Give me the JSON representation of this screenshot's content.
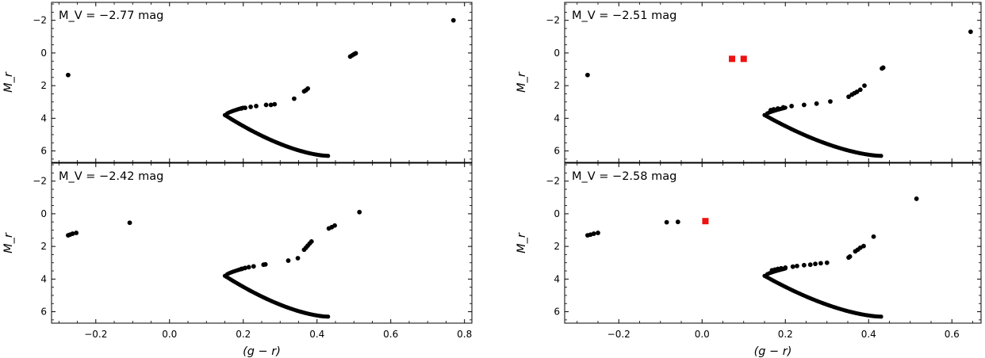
{
  "chart_data": [
    {
      "type": "scatter",
      "panel": "top-left",
      "annotation": "M_V = −2.77 mag",
      "xlabel": "",
      "ylabel": "M_r",
      "xlim": [
        -0.32,
        0.82
      ],
      "ylim": [
        6.7,
        -3.1
      ],
      "y_inverted": true,
      "xticks": [],
      "yticks": [
        -2,
        0,
        2,
        4,
        6
      ],
      "ytick_labels": [
        "−2",
        "0",
        "2",
        "4",
        "6"
      ],
      "black_points": [
        [
          -0.275,
          1.35
        ],
        [
          0.77,
          -2.0
        ],
        [
          0.49,
          0.22
        ],
        [
          0.495,
          0.15
        ],
        [
          0.5,
          0.08
        ],
        [
          0.505,
          0.02
        ],
        [
          0.365,
          2.35
        ],
        [
          0.37,
          2.28
        ],
        [
          0.375,
          2.18
        ],
        [
          0.338,
          2.8
        ],
        [
          0.285,
          3.14
        ],
        [
          0.275,
          3.18
        ],
        [
          0.262,
          3.18
        ],
        [
          0.235,
          3.25
        ],
        [
          0.22,
          3.3
        ],
        [
          0.205,
          3.36
        ],
        [
          0.195,
          3.4
        ]
      ],
      "red_points": []
    },
    {
      "type": "scatter",
      "panel": "top-right",
      "annotation": "M_V = −2.51 mag",
      "xlabel": "",
      "ylabel": "M_r",
      "xlim": [
        -0.33,
        0.67
      ],
      "ylim": [
        6.7,
        -3.1
      ],
      "y_inverted": true,
      "xticks": [],
      "yticks": [
        -2,
        0,
        2,
        4,
        6
      ],
      "ytick_labels": [
        "−2",
        "0",
        "2",
        "4",
        "6"
      ],
      "black_points": [
        [
          -0.275,
          1.35
        ],
        [
          0.645,
          -1.3
        ],
        [
          0.435,
          0.9
        ],
        [
          0.432,
          0.95
        ],
        [
          0.39,
          2.0
        ],
        [
          0.38,
          2.25
        ],
        [
          0.372,
          2.38
        ],
        [
          0.366,
          2.46
        ],
        [
          0.36,
          2.55
        ],
        [
          0.352,
          2.68
        ],
        [
          0.308,
          2.97
        ],
        [
          0.275,
          3.1
        ],
        [
          0.245,
          3.18
        ],
        [
          0.215,
          3.25
        ],
        [
          0.195,
          3.33
        ],
        [
          0.182,
          3.4
        ],
        [
          0.172,
          3.45
        ],
        [
          0.165,
          3.5
        ]
      ],
      "red_points": [
        [
          0.072,
          0.36
        ],
        [
          0.1,
          0.36
        ]
      ]
    },
    {
      "type": "scatter",
      "panel": "bottom-left",
      "annotation": "M_V = −2.42 mag",
      "xlabel": "(g − r)",
      "ylabel": "M_r",
      "xlim": [
        -0.32,
        0.82
      ],
      "ylim": [
        6.7,
        -3.1
      ],
      "y_inverted": true,
      "xticks": [
        -0.2,
        0.0,
        0.2,
        0.4,
        0.6,
        0.8
      ],
      "xtick_labels": [
        "−0.2",
        "0.0",
        "0.2",
        "0.4",
        "0.6",
        "0.8"
      ],
      "yticks": [
        -2,
        0,
        2,
        4,
        6
      ],
      "ytick_labels": [
        "−2",
        "0",
        "2",
        "4",
        "6"
      ],
      "black_points": [
        [
          -0.275,
          1.32
        ],
        [
          -0.27,
          1.28
        ],
        [
          -0.263,
          1.22
        ],
        [
          -0.253,
          1.17
        ],
        [
          -0.108,
          0.55
        ],
        [
          0.515,
          -0.1
        ],
        [
          0.448,
          0.72
        ],
        [
          0.44,
          0.82
        ],
        [
          0.432,
          0.9
        ],
        [
          0.385,
          1.7
        ],
        [
          0.38,
          1.82
        ],
        [
          0.375,
          1.95
        ],
        [
          0.37,
          2.08
        ],
        [
          0.365,
          2.2
        ],
        [
          0.348,
          2.72
        ],
        [
          0.322,
          2.87
        ],
        [
          0.26,
          3.1
        ],
        [
          0.255,
          3.12
        ],
        [
          0.228,
          3.22
        ],
        [
          0.215,
          3.27
        ],
        [
          0.205,
          3.32
        ],
        [
          0.195,
          3.38
        ]
      ],
      "red_points": []
    },
    {
      "type": "scatter",
      "panel": "bottom-right",
      "annotation": "M_V = −2.58 mag",
      "xlabel": "(g − r)",
      "ylabel": "M_r",
      "xlim": [
        -0.33,
        0.67
      ],
      "ylim": [
        6.7,
        -3.1
      ],
      "y_inverted": true,
      "xticks": [
        -0.2,
        0.0,
        0.2,
        0.4,
        0.6
      ],
      "xtick_labels": [
        "−0.2",
        "0.0",
        "0.2",
        "0.4",
        "0.6"
      ],
      "yticks": [
        -2,
        0,
        2,
        4,
        6
      ],
      "ytick_labels": [
        "−2",
        "0",
        "2",
        "4",
        "6"
      ],
      "black_points": [
        [
          -0.275,
          1.32
        ],
        [
          -0.268,
          1.28
        ],
        [
          -0.26,
          1.22
        ],
        [
          -0.25,
          1.17
        ],
        [
          -0.085,
          0.52
        ],
        [
          -0.058,
          0.5
        ],
        [
          0.515,
          -0.92
        ],
        [
          0.412,
          1.4
        ],
        [
          0.388,
          1.98
        ],
        [
          0.38,
          2.08
        ],
        [
          0.374,
          2.2
        ],
        [
          0.368,
          2.3
        ],
        [
          0.355,
          2.62
        ],
        [
          0.352,
          2.68
        ],
        [
          0.3,
          3.0
        ],
        [
          0.285,
          3.03
        ],
        [
          0.272,
          3.07
        ],
        [
          0.26,
          3.12
        ],
        [
          0.245,
          3.15
        ],
        [
          0.228,
          3.2
        ],
        [
          0.218,
          3.24
        ],
        [
          0.2,
          3.3
        ],
        [
          0.19,
          3.34
        ],
        [
          0.182,
          3.38
        ],
        [
          0.175,
          3.42
        ],
        [
          0.168,
          3.46
        ]
      ],
      "red_points": [
        [
          0.008,
          0.45
        ]
      ]
    }
  ],
  "colors": {
    "points": "#000000",
    "highlight": "#ee1111",
    "axes": "#000000"
  },
  "isochrone": {
    "turnoff_color": 0.15,
    "turnoff_mag": 3.8,
    "end_color": 0.43,
    "end_mag": 6.3,
    "top_color": 0.2,
    "top_mag": 3.35
  }
}
